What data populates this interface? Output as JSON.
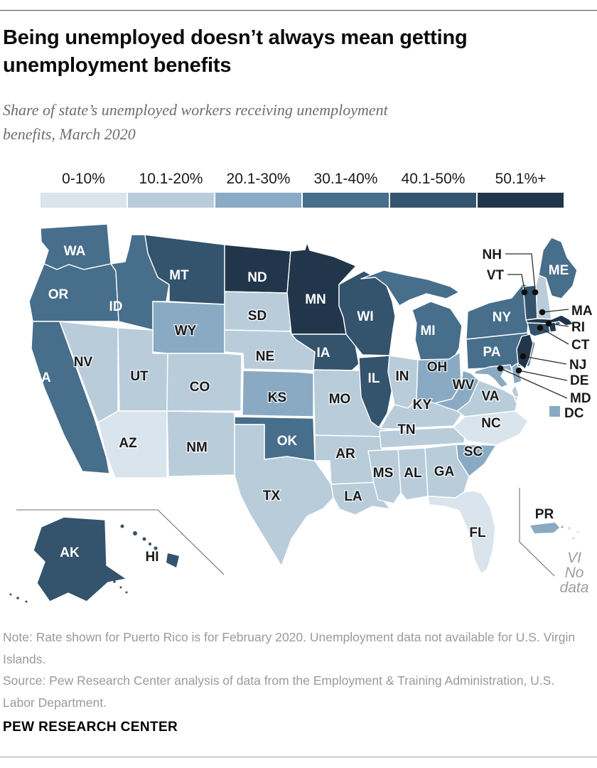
{
  "page": {
    "title": "Being unemployed doesn’t always mean getting unemployment benefits",
    "subtitle": "Share of state’s unemployed workers receiving unemployment benefits, March 2020",
    "note": "Note: Rate shown for Puerto Rico is for February 2020. Unemployment data not available for U.S. Virgin Islands.",
    "source": "Source: Pew Research Center analysis of data from the Employment & Training Administration, U.S. Labor Department.",
    "brand": "PEW RESEARCH CENTER"
  },
  "legend": {
    "categories": [
      {
        "label": "0-10%",
        "color": "#d9e4ed"
      },
      {
        "label": "10.1-20%",
        "color": "#b9ccda"
      },
      {
        "label": "20.1-30%",
        "color": "#8aaac3"
      },
      {
        "label": "30.1-40%",
        "color": "#476e8b"
      },
      {
        "label": "40.1-50%",
        "color": "#34536c"
      },
      {
        "label": "50.1%+",
        "color": "#21364a"
      }
    ],
    "no_data_color": "#dde4e9",
    "label_dark": "#1a1a1a",
    "label_light": "#ffffff"
  },
  "map": {
    "dc_label": "DC",
    "pr_label": "PR",
    "vi_label": "VI",
    "vi_note_lines": [
      "No",
      "data"
    ]
  },
  "chart_data": {
    "type": "heatmap",
    "title": "Being unemployed doesn’t always mean getting unemployment benefits",
    "subtitle": "Share of state’s unemployed workers receiving unemployment benefits, March 2020",
    "legend_position": "top",
    "buckets": [
      "0-10%",
      "10.1-20%",
      "20.1-30%",
      "30.1-40%",
      "40.1-50%",
      "50.1%+"
    ],
    "bucket_colors": [
      "#d9e4ed",
      "#b9ccda",
      "#8aaac3",
      "#476e8b",
      "#34536c",
      "#21364a"
    ],
    "values": {
      "WA": "30.1-40%",
      "OR": "30.1-40%",
      "CA": "30.1-40%",
      "NV": "10.1-20%",
      "ID": "30.1-40%",
      "MT": "40.1-50%",
      "WY": "20.1-30%",
      "UT": "10.1-20%",
      "CO": "10.1-20%",
      "AZ": "0-10%",
      "NM": "10.1-20%",
      "ND": "50.1%+",
      "SD": "10.1-20%",
      "NE": "10.1-20%",
      "KS": "20.1-30%",
      "OK": "30.1-40%",
      "TX": "10.1-20%",
      "MN": "50.1%+",
      "IA": "40.1-50%",
      "MO": "10.1-20%",
      "AR": "10.1-20%",
      "LA": "10.1-20%",
      "WI": "40.1-50%",
      "IL": "40.1-50%",
      "IN": "10.1-20%",
      "MI": "30.1-40%",
      "OH": "20.1-30%",
      "KY": "10.1-20%",
      "TN": "10.1-20%",
      "MS": "10.1-20%",
      "AL": "10.1-20%",
      "GA": "10.1-20%",
      "WV": "20.1-30%",
      "VA": "10.1-20%",
      "NC": "0-10%",
      "SC": "20.1-30%",
      "FL": "0-10%",
      "PA": "30.1-40%",
      "NY": "30.1-40%",
      "ME": "30.1-40%",
      "VT": "40.1-50%",
      "NH": "10.1-20%",
      "MA": "50.1%+",
      "RI": "50.1%+",
      "CT": "40.1-50%",
      "NJ": "50.1%+",
      "DE": "20.1-30%",
      "MD": "20.1-30%",
      "DC": "20.1-30%",
      "AK": "40.1-50%",
      "HI": "40.1-50%",
      "PR": "20.1-30%",
      "VI": "No data"
    },
    "no_data": [
      "VI"
    ],
    "notes": [
      "Note: Rate shown for Puerto Rico is for February 2020. Unemployment data not available for U.S. Virgin Islands.",
      "Source: Pew Research Center analysis of data from the Employment & Training Administration, U.S. Labor Department."
    ]
  }
}
